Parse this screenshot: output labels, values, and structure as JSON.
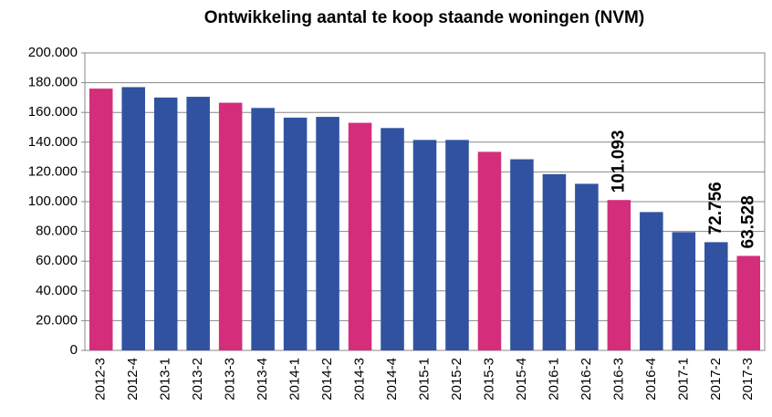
{
  "chart_data": {
    "type": "bar",
    "title": "Ontwikkeling aantal te koop staande woningen (NVM)",
    "categories": [
      "2012-3",
      "2012-4",
      "2013-1",
      "2013-2",
      "2013-3",
      "2013-4",
      "2014-1",
      "2014-2",
      "2014-3",
      "2014-4",
      "2015-1",
      "2015-2",
      "2015-3",
      "2015-4",
      "2016-1",
      "2016-2",
      "2016-3",
      "2016-4",
      "2017-1",
      "2017-2",
      "2017-3"
    ],
    "values": [
      176000,
      177000,
      170000,
      170500,
      166500,
      163000,
      156500,
      157000,
      153000,
      149500,
      141500,
      141500,
      133500,
      128500,
      118500,
      112000,
      101093,
      93000,
      79500,
      72756,
      63528
    ],
    "value_labels": [
      null,
      null,
      null,
      null,
      null,
      null,
      null,
      null,
      null,
      null,
      null,
      null,
      null,
      null,
      null,
      null,
      "101.093",
      null,
      null,
      "72.756",
      "63.528"
    ],
    "colors": [
      "#d42d7c",
      "#3152a0",
      "#3152a0",
      "#3152a0",
      "#d42d7c",
      "#3152a0",
      "#3152a0",
      "#3152a0",
      "#d42d7c",
      "#3152a0",
      "#3152a0",
      "#3152a0",
      "#d42d7c",
      "#3152a0",
      "#3152a0",
      "#3152a0",
      "#d42d7c",
      "#3152a0",
      "#3152a0",
      "#3152a0",
      "#d42d7c"
    ],
    "ylim": [
      0,
      200000
    ],
    "yticks": [
      0,
      {
        "value": 20000,
        "label": "20.000"
      },
      {
        "value": 40000,
        "label": "40.000"
      },
      {
        "value": 60000,
        "label": "60.000"
      },
      {
        "value": 80000,
        "label": "80.000"
      },
      {
        "value": 100000,
        "label": "100.000"
      },
      {
        "value": 120000,
        "label": "120.000"
      },
      {
        "value": 140000,
        "label": "140.000"
      },
      {
        "value": 160000,
        "label": "160.000"
      },
      {
        "value": 180000,
        "label": "180.000"
      },
      {
        "value": 200000,
        "label": "200.000"
      }
    ],
    "grid": true
  }
}
